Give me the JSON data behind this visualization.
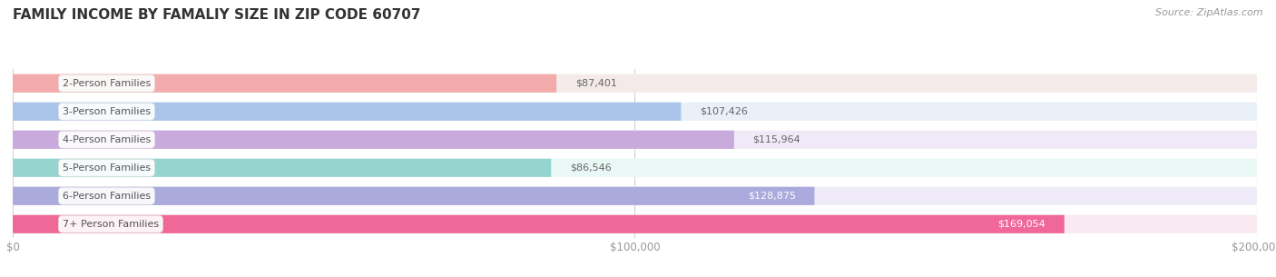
{
  "title": "FAMILY INCOME BY FAMALIY SIZE IN ZIP CODE 60707",
  "source": "Source: ZipAtlas.com",
  "categories": [
    "2-Person Families",
    "3-Person Families",
    "4-Person Families",
    "5-Person Families",
    "6-Person Families",
    "7+ Person Families"
  ],
  "values": [
    87401,
    107426,
    115964,
    86546,
    128875,
    169054
  ],
  "bar_colors": [
    "#F2AAAA",
    "#A8C4E8",
    "#C8AADC",
    "#96D4D0",
    "#AAAADC",
    "#F06898"
  ],
  "bg_colors": [
    "#F5EAEA",
    "#EAF0F8",
    "#F0EAF8",
    "#EAF8F5",
    "#EEEAF8",
    "#F8EAF0"
  ],
  "xlim": [
    0,
    200000
  ],
  "xtick_labels": [
    "$0",
    "$100,000",
    "$200,000"
  ],
  "title_fontsize": 11,
  "bar_height": 0.65,
  "background_color": "#ffffff",
  "value_inside_threshold": 120000
}
